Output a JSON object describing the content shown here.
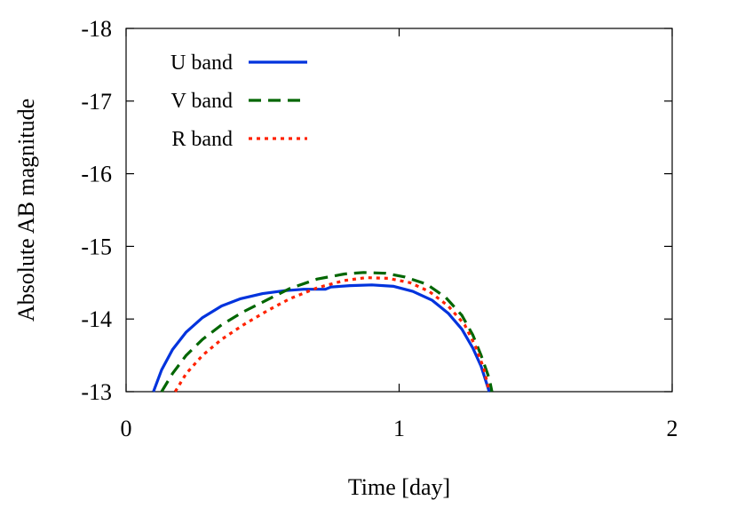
{
  "chart_data": {
    "type": "line",
    "title": "",
    "xlabel": "Time [day]",
    "ylabel": "Absolute AB magnitude",
    "xlim": [
      0,
      2
    ],
    "ylim": [
      -13,
      -18
    ],
    "y_reversed": true,
    "grid": false,
    "legend_position": "top-left",
    "x_ticks": [
      "0",
      "1",
      "2"
    ],
    "y_ticks": [
      "-18",
      "-17",
      "-16",
      "-15",
      "-14",
      "-13"
    ],
    "series": [
      {
        "name": "U band",
        "color": "#0033dd",
        "style": "solid",
        "points": [
          [
            0.1,
            -13.0
          ],
          [
            0.13,
            -13.3
          ],
          [
            0.17,
            -13.58
          ],
          [
            0.22,
            -13.82
          ],
          [
            0.28,
            -14.02
          ],
          [
            0.35,
            -14.18
          ],
          [
            0.42,
            -14.28
          ],
          [
            0.5,
            -14.35
          ],
          [
            0.58,
            -14.39
          ],
          [
            0.65,
            -14.41
          ],
          [
            0.73,
            -14.41
          ],
          [
            0.75,
            -14.44
          ],
          [
            0.82,
            -14.46
          ],
          [
            0.9,
            -14.47
          ],
          [
            0.98,
            -14.45
          ],
          [
            1.05,
            -14.38
          ],
          [
            1.12,
            -14.26
          ],
          [
            1.18,
            -14.08
          ],
          [
            1.23,
            -13.86
          ],
          [
            1.27,
            -13.6
          ],
          [
            1.3,
            -13.35
          ],
          [
            1.33,
            -13.0
          ]
        ]
      },
      {
        "name": "V band",
        "color": "#006600",
        "style": "dashed",
        "points": [
          [
            0.13,
            -13.0
          ],
          [
            0.17,
            -13.25
          ],
          [
            0.22,
            -13.5
          ],
          [
            0.28,
            -13.72
          ],
          [
            0.35,
            -13.92
          ],
          [
            0.43,
            -14.1
          ],
          [
            0.52,
            -14.27
          ],
          [
            0.6,
            -14.42
          ],
          [
            0.7,
            -14.55
          ],
          [
            0.8,
            -14.62
          ],
          [
            0.87,
            -14.64
          ],
          [
            0.95,
            -14.63
          ],
          [
            1.02,
            -14.58
          ],
          [
            1.1,
            -14.48
          ],
          [
            1.17,
            -14.3
          ],
          [
            1.23,
            -14.05
          ],
          [
            1.27,
            -13.78
          ],
          [
            1.3,
            -13.5
          ],
          [
            1.33,
            -13.18
          ],
          [
            1.34,
            -13.0
          ]
        ]
      },
      {
        "name": "R band",
        "color": "#ff2200",
        "style": "dotted",
        "points": [
          [
            0.18,
            -13.0
          ],
          [
            0.22,
            -13.25
          ],
          [
            0.28,
            -13.5
          ],
          [
            0.35,
            -13.72
          ],
          [
            0.43,
            -13.92
          ],
          [
            0.52,
            -14.12
          ],
          [
            0.6,
            -14.28
          ],
          [
            0.7,
            -14.43
          ],
          [
            0.8,
            -14.53
          ],
          [
            0.88,
            -14.57
          ],
          [
            0.96,
            -14.56
          ],
          [
            1.04,
            -14.5
          ],
          [
            1.11,
            -14.38
          ],
          [
            1.18,
            -14.18
          ],
          [
            1.24,
            -13.92
          ],
          [
            1.28,
            -13.62
          ],
          [
            1.31,
            -13.32
          ],
          [
            1.33,
            -13.0
          ]
        ]
      }
    ]
  }
}
